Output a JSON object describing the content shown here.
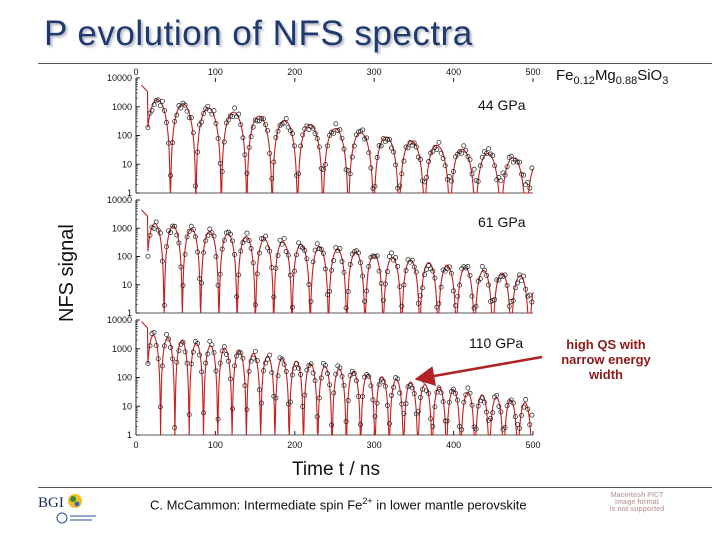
{
  "slide": {
    "title": "P evolution of NFS spectra",
    "formula": {
      "fe": "Fe",
      "fe_sub": "0.12",
      "mg": "Mg",
      "mg_sub": "0.88",
      "sio": "SiO",
      "o_sub": "3"
    },
    "annotation": "high QS with narrow energy width",
    "footer": {
      "text": "C. McCammon: Intermediate spin Fe",
      "sup": "2+",
      "text_after": " in lower mantle perovskite"
    },
    "logo": {
      "text": "BGI"
    },
    "placeholder_image_text": [
      "Macintosh PICT",
      "image format",
      "is not supported"
    ]
  },
  "colors": {
    "title": "#1f3a6e",
    "fit_line": "#c81e1e",
    "arrow": "#b22222",
    "annotation": "#8b1a1a",
    "points": "#222222"
  },
  "chart_data": {
    "type": "scatter",
    "title": "P evolution of NFS spectra",
    "xlabel": "Time t / ns",
    "ylabel": "NFS signal",
    "xlim": [
      0,
      500
    ],
    "x_ticks": [
      0,
      100,
      200,
      300,
      400,
      500
    ],
    "y_scale": "log",
    "ylim": [
      1,
      10000
    ],
    "y_ticks": [
      1,
      10,
      100,
      1000,
      10000
    ],
    "panels": [
      {
        "label": "44 GPa",
        "start_t": 15,
        "beat_period_ns": 32,
        "peak_log10": 3.3,
        "decay_per_ns": 0.0045
      },
      {
        "label": "61 GPa",
        "start_t": 15,
        "beat_period_ns": 23,
        "peak_log10": 3.2,
        "decay_per_ns": 0.004
      },
      {
        "label": "110 GPa",
        "start_t": 15,
        "beat_period_ns": 18,
        "peak_log10": 3.5,
        "decay_per_ns": 0.005
      }
    ],
    "series": [
      {
        "name": "measured data",
        "style": "open circles"
      },
      {
        "name": "fit",
        "style": "red line"
      }
    ]
  }
}
